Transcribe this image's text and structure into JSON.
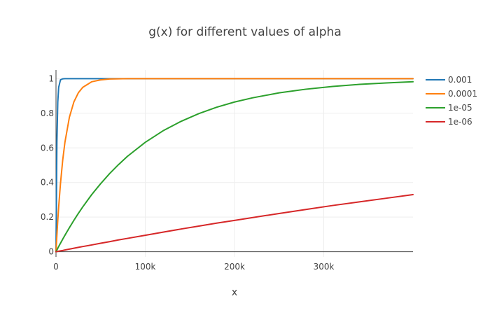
{
  "chart_data": {
    "type": "line",
    "title": "g(x) for different values of alpha",
    "xlabel": "x",
    "ylabel": "",
    "xlim": [
      0,
      400000
    ],
    "ylim": [
      -0.03,
      1.05
    ],
    "x_ticks": [
      0,
      100000,
      200000,
      300000
    ],
    "x_tick_labels": [
      "0",
      "100k",
      "200k",
      "300k"
    ],
    "y_ticks": [
      0,
      0.2,
      0.4,
      0.6,
      0.8,
      1
    ],
    "y_tick_labels": [
      "0",
      "0.2",
      "0.4",
      "0.6",
      "0.8",
      "1"
    ],
    "grid": true,
    "legend_position": "top-right",
    "x": [
      0,
      1000,
      2000,
      3000,
      5000,
      7500,
      10000,
      15000,
      20000,
      25000,
      30000,
      40000,
      50000,
      60000,
      70000,
      80000,
      100000,
      120000,
      140000,
      160000,
      180000,
      200000,
      220000,
      250000,
      280000,
      310000,
      340000,
      370000,
      400000
    ],
    "series": [
      {
        "name": "0.001",
        "color": "#1f77b4",
        "values": [
          0,
          0.632,
          0.865,
          0.95,
          0.993,
          0.999,
          1,
          1,
          1,
          1,
          1,
          1,
          1,
          1,
          1,
          1,
          1,
          1,
          1,
          1,
          1,
          1,
          1,
          1,
          1,
          1,
          1,
          1,
          1
        ]
      },
      {
        "name": "0.0001",
        "color": "#ff7f0e",
        "values": [
          0,
          0.095,
          0.181,
          0.259,
          0.393,
          0.528,
          0.632,
          0.777,
          0.865,
          0.918,
          0.95,
          0.982,
          0.993,
          0.998,
          0.999,
          1,
          1,
          1,
          1,
          1,
          1,
          1,
          1,
          1,
          1,
          1,
          1,
          1,
          1
        ]
      },
      {
        "name": "1e-05",
        "color": "#2ca02c",
        "values": [
          0,
          0.01,
          0.02,
          0.03,
          0.049,
          0.072,
          0.095,
          0.139,
          0.181,
          0.221,
          0.259,
          0.33,
          0.393,
          0.451,
          0.503,
          0.551,
          0.632,
          0.699,
          0.753,
          0.798,
          0.835,
          0.865,
          0.889,
          0.918,
          0.939,
          0.955,
          0.967,
          0.975,
          0.982
        ]
      },
      {
        "name": "1e-06",
        "color": "#d62728",
        "values": [
          0,
          0.001,
          0.002,
          0.003,
          0.005,
          0.007,
          0.01,
          0.015,
          0.02,
          0.025,
          0.03,
          0.039,
          0.049,
          0.058,
          0.068,
          0.077,
          0.095,
          0.113,
          0.131,
          0.148,
          0.165,
          0.181,
          0.197,
          0.221,
          0.244,
          0.267,
          0.288,
          0.309,
          0.33
        ]
      }
    ]
  }
}
